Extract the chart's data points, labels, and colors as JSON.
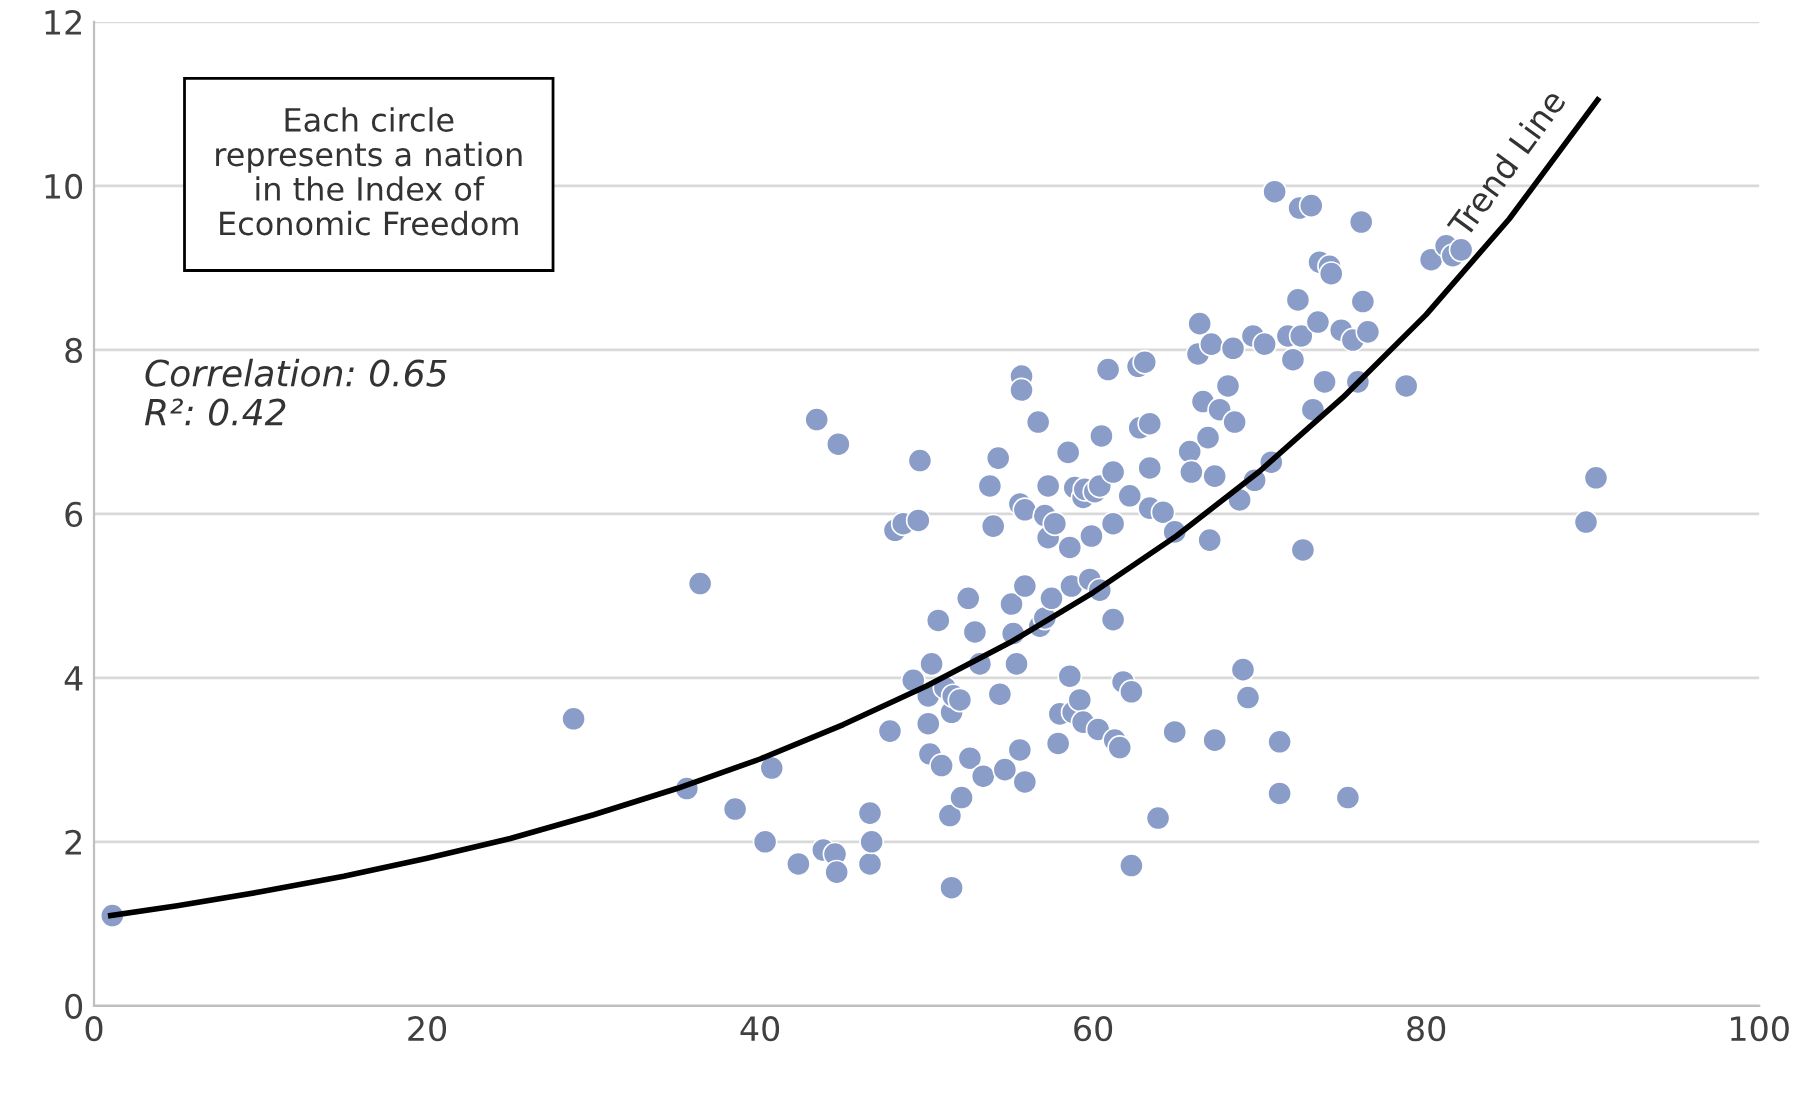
{
  "chart_data": {
    "type": "scatter",
    "xlim": [
      0,
      100
    ],
    "xticks": [
      0,
      20,
      40,
      60,
      80,
      100
    ],
    "ylim": [
      0,
      12
    ],
    "yticks": [
      0,
      2,
      4,
      6,
      8,
      10,
      12
    ],
    "grid": "y",
    "marker": "circle",
    "annotations": [
      "Each circle\nrepresents a nation\nin the Index of\nEconomic Freedom",
      "Correlation: 0.65\nR²: 0.42",
      "Trend Line"
    ],
    "series": [
      {
        "color": "#8a9dc8",
        "x": [
          1.1,
          28.8,
          35.6,
          36.4,
          38.5,
          40.3,
          40.7,
          42.3,
          43.4,
          43.8,
          44.5,
          44.6,
          44.7,
          46.6,
          46.6,
          46.7,
          47.8,
          48.1,
          48.6,
          49.6,
          49.5,
          49.2,
          50.1,
          50.1,
          50.3,
          50.2,
          50.7,
          50.9,
          51.1,
          51.4,
          51.5,
          51.6,
          51.5,
          52.0,
          52.1,
          52.5,
          52.6,
          52.9,
          53.2,
          53.4,
          53.8,
          54.0,
          54.3,
          54.4,
          54.7,
          55.1,
          55.2,
          55.4,
          55.6,
          55.6,
          55.7,
          55.7,
          55.9,
          55.9,
          55.9,
          56.7,
          56.8,
          57.1,
          57.1,
          57.3,
          57.3,
          57.5,
          57.7,
          57.9,
          58.0,
          58.5,
          58.6,
          58.6,
          58.7,
          58.8,
          58.9,
          59.2,
          59.4,
          59.4,
          59.5,
          59.8,
          59.9,
          60.1,
          60.4,
          60.5,
          60.3,
          60.4,
          60.9,
          61.2,
          61.2,
          61.2,
          61.3,
          61.6,
          61.8,
          62.2,
          62.3,
          62.3,
          62.7,
          62.8,
          63.1,
          63.4,
          63.4,
          63.4,
          63.9,
          64.2,
          64.9,
          64.9,
          65.8,
          65.9,
          66.3,
          66.4,
          66.6,
          66.9,
          67.0,
          67.1,
          67.3,
          67.3,
          67.6,
          68.1,
          68.4,
          68.5,
          68.8,
          69.0,
          69.3,
          69.6,
          69.7,
          70.3,
          70.7,
          70.9,
          71.2,
          71.2,
          71.7,
          72.0,
          72.3,
          72.4,
          72.5,
          72.6,
          73.1,
          73.2,
          73.5,
          73.6,
          73.9,
          74.2,
          74.3,
          74.9,
          75.3,
          75.6,
          75.9,
          76.1,
          76.2,
          76.5,
          78.8,
          80.3,
          81.2,
          81.6,
          82.1,
          89.6,
          90.2
        ],
        "values": [
          1.1,
          3.5,
          2.65,
          5.15,
          2.4,
          2.0,
          2.9,
          1.73,
          7.15,
          1.9,
          1.85,
          1.63,
          6.85,
          2.35,
          1.73,
          2.0,
          3.35,
          5.8,
          5.88,
          6.65,
          5.92,
          3.97,
          3.78,
          3.44,
          4.17,
          3.07,
          4.7,
          2.93,
          3.88,
          2.32,
          3.58,
          3.78,
          1.44,
          3.73,
          2.54,
          4.97,
          3.02,
          4.56,
          4.17,
          2.8,
          6.34,
          5.85,
          6.68,
          3.8,
          2.88,
          4.9,
          4.54,
          4.17,
          3.12,
          6.12,
          7.68,
          7.51,
          6.05,
          5.12,
          2.73,
          7.12,
          4.63,
          4.73,
          5.98,
          6.34,
          5.71,
          4.97,
          5.88,
          3.2,
          3.56,
          6.75,
          5.59,
          4.02,
          5.12,
          3.58,
          6.32,
          3.73,
          6.2,
          3.46,
          6.3,
          5.2,
          5.73,
          6.27,
          6.34,
          6.95,
          3.37,
          5.07,
          7.76,
          6.51,
          4.71,
          5.88,
          3.24,
          3.15,
          3.95,
          6.22,
          3.83,
          1.71,
          7.8,
          7.05,
          7.85,
          6.56,
          7.1,
          6.07,
          2.29,
          6.02,
          5.78,
          3.34,
          6.76,
          6.51,
          7.95,
          8.32,
          7.37,
          6.93,
          5.68,
          8.07,
          6.46,
          3.24,
          7.27,
          7.56,
          8.02,
          7.12,
          6.17,
          4.1,
          3.76,
          8.17,
          6.41,
          8.07,
          6.63,
          9.93,
          3.22,
          2.59,
          8.17,
          7.88,
          8.61,
          9.73,
          8.17,
          5.56,
          9.76,
          7.27,
          8.34,
          9.07,
          7.61,
          9.02,
          8.93,
          8.24,
          2.54,
          8.12,
          7.61,
          9.56,
          8.59,
          8.22,
          7.56,
          9.1,
          9.27,
          9.15,
          9.22,
          5.9,
          6.44
        ]
      },
      {
        "type": "line",
        "color": "#000000",
        "marker": "none",
        "x": [
          1,
          5,
          10,
          15,
          20,
          25,
          30,
          35,
          40,
          45,
          50,
          55,
          60,
          65,
          70,
          75,
          80,
          85,
          90.3
        ],
        "values": [
          1.1,
          1.22,
          1.39,
          1.58,
          1.8,
          2.04,
          2.33,
          2.65,
          3.01,
          3.43,
          3.9,
          4.43,
          5.04,
          5.73,
          6.52,
          7.42,
          8.43,
          9.6,
          11.05
        ]
      }
    ]
  }
}
